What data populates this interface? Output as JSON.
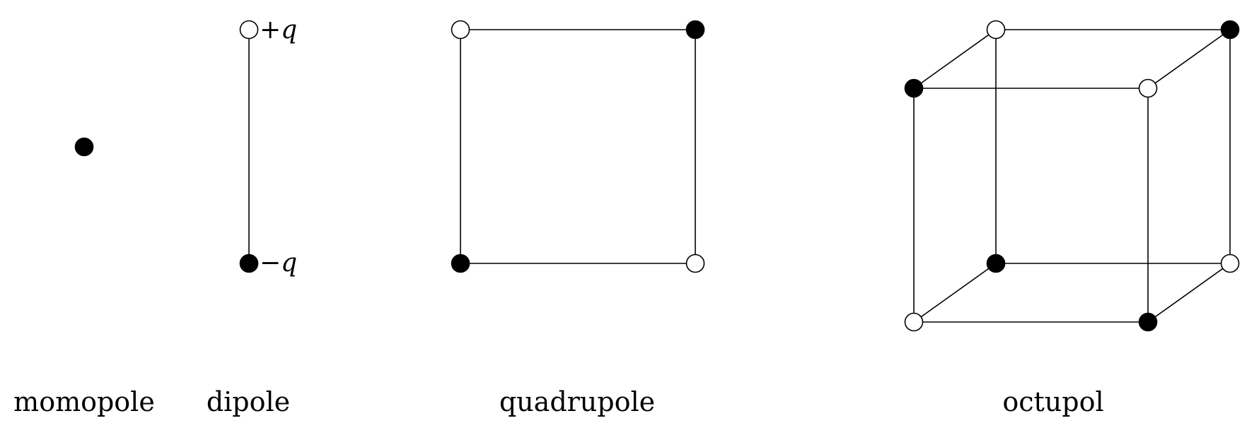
{
  "colors": {
    "line": "#000000",
    "negative_fill": "#000000",
    "positive_fill": "#ffffff",
    "background": "#ffffff"
  },
  "charge_legend": {
    "positive": "hollow circle",
    "negative": "filled circle"
  },
  "dipole": {
    "plus_label": {
      "sign": "+",
      "symbol": "q"
    },
    "minus_label": {
      "sign": "−",
      "symbol": "q"
    }
  },
  "captions": {
    "monopole": "momopole",
    "dipole": "dipole",
    "quadrupole": "quadrupole",
    "octupole": "octupol"
  }
}
